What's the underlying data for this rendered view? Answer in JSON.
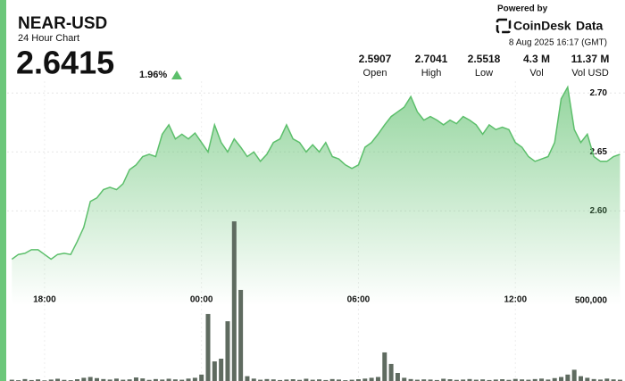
{
  "chart_data": {
    "type": "line",
    "title": "NEAR-USD",
    "subtitle": "24 Hour Chart",
    "price": 2.6415,
    "change": {
      "value": 1.96,
      "label": "1.96%"
    },
    "powered_by": "Powered by",
    "brand": [
      "CoinDesk",
      "Data"
    ],
    "timestamp": "8 Aug 2025 16:17 (GMT)",
    "stats": [
      {
        "name": "Open",
        "value": 2.5907
      },
      {
        "name": "High",
        "value": 2.7041
      },
      {
        "name": "Low",
        "value": 2.5518
      },
      {
        "name": "Vol",
        "value": {
          "value": 4300000,
          "label": "4.3 M"
        }
      },
      {
        "name": "Vol USD",
        "value": {
          "value": 11370000,
          "label": "11.37 M"
        }
      }
    ],
    "x": [
      16.75,
      17,
      17.25,
      17.5,
      17.75,
      18,
      18.25,
      18.5,
      18.75,
      19,
      19.25,
      19.5,
      19.75,
      20,
      20.25,
      20.5,
      20.75,
      21,
      21.25,
      21.5,
      21.75,
      22,
      22.25,
      22.5,
      22.75,
      23,
      23.25,
      23.5,
      23.75,
      24,
      24.25,
      24.5,
      24.75,
      25,
      25.25,
      25.5,
      25.75,
      26,
      26.25,
      26.5,
      26.75,
      27,
      27.25,
      27.5,
      27.75,
      28,
      28.25,
      28.5,
      28.75,
      29,
      29.25,
      29.5,
      29.75,
      30,
      30.25,
      30.5,
      30.75,
      31,
      31.25,
      31.5,
      31.75,
      32,
      32.25,
      32.5,
      32.75,
      33,
      33.25,
      33.5,
      33.75,
      34,
      34.25,
      34.5,
      34.75,
      35,
      35.25,
      35.5,
      35.75,
      36,
      36.25,
      36.5,
      36.75,
      37,
      37.25,
      37.5,
      37.75,
      38,
      38.25,
      38.5,
      38.75,
      39,
      39.25,
      39.5,
      39.75,
      40
    ],
    "xlim": [
      16.57,
      40.19
    ],
    "xticks": [
      {
        "value": 18,
        "label": "18:00"
      },
      {
        "value": 24,
        "label": "00:00"
      },
      {
        "value": 30,
        "label": "06:00"
      },
      {
        "value": 36,
        "label": "12:00"
      }
    ],
    "ylim": [
      2.52,
      2.71
    ],
    "yticks": [
      {
        "value": 2.6,
        "label": "2.60"
      },
      {
        "value": 2.65,
        "label": "2.65"
      },
      {
        "value": 2.7,
        "label": "2.70"
      }
    ],
    "y2lim": [
      0,
      1000000
    ],
    "y2ticks": [
      {
        "value": 500000,
        "label": "500,000"
      }
    ],
    "grid": true,
    "series": [
      {
        "name": "Price",
        "color": "#5cbf6b",
        "values": [
          2.559,
          2.563,
          2.564,
          2.567,
          2.567,
          2.563,
          2.559,
          2.563,
          2.564,
          2.563,
          2.574,
          2.586,
          2.608,
          2.611,
          2.618,
          2.62,
          2.618,
          2.623,
          2.635,
          2.639,
          2.646,
          2.648,
          2.646,
          2.665,
          2.673,
          2.661,
          2.665,
          2.661,
          2.666,
          2.658,
          2.65,
          2.673,
          2.658,
          2.65,
          2.661,
          2.654,
          2.646,
          2.65,
          2.642,
          2.648,
          2.658,
          2.661,
          2.673,
          2.661,
          2.658,
          2.65,
          2.656,
          2.65,
          2.658,
          2.646,
          2.644,
          2.639,
          2.636,
          2.639,
          2.654,
          2.658,
          2.665,
          2.673,
          2.68,
          2.684,
          2.688,
          2.697,
          2.684,
          2.677,
          2.68,
          2.677,
          2.673,
          2.677,
          2.674,
          2.68,
          2.677,
          2.673,
          2.665,
          2.673,
          2.669,
          2.671,
          2.669,
          2.658,
          2.654,
          2.646,
          2.642,
          2.644,
          2.646,
          2.658,
          2.695,
          2.705,
          2.669,
          2.658,
          2.665,
          2.646,
          2.642,
          2.642,
          2.646,
          2.648
        ]
      },
      {
        "name": "Volume",
        "color": "#5f6b60",
        "axis": "y2",
        "values": [
          8000,
          5000,
          12000,
          6000,
          10000,
          4000,
          9000,
          14000,
          7000,
          5000,
          11000,
          20000,
          25000,
          18000,
          12000,
          9000,
          15000,
          8000,
          10000,
          22000,
          16000,
          7000,
          12000,
          9000,
          14000,
          10000,
          8000,
          15000,
          20000,
          40000,
          417000,
          122000,
          139000,
          372000,
          994000,
          567000,
          30000,
          15000,
          8000,
          12000,
          10000,
          6000,
          9000,
          11000,
          7000,
          14000,
          8000,
          10000,
          6000,
          12000,
          9000,
          5000,
          8000,
          11000,
          15000,
          20000,
          25000,
          178000,
          106000,
          50000,
          20000,
          12000,
          8000,
          10000,
          9000,
          6000,
          14000,
          11000,
          7000,
          9000,
          12000,
          8000,
          10000,
          6000,
          9000,
          11000,
          7000,
          13000,
          10000,
          8000,
          12000,
          15000,
          9000,
          18000,
          25000,
          40000,
          70000,
          30000,
          20000,
          12000,
          9000,
          15000,
          10000,
          8000
        ]
      }
    ]
  }
}
